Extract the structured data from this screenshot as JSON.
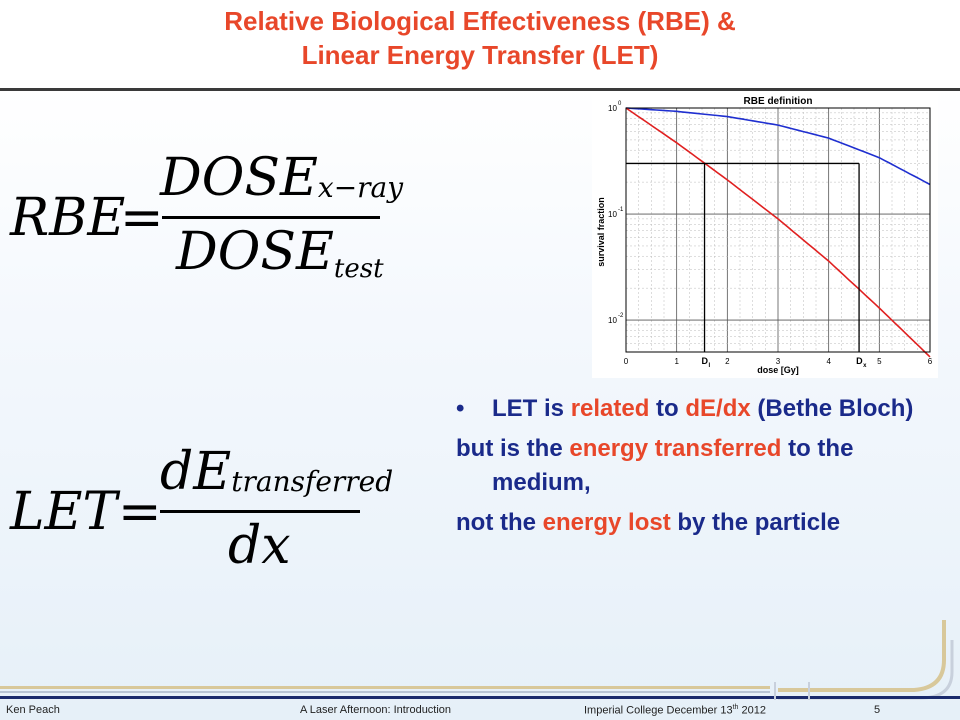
{
  "title": {
    "line1": "Relative Biological Effectiveness (RBE) &",
    "line2": "Linear Energy Transfer (LET)"
  },
  "rbe_equation": {
    "lhs": "RBE",
    "equals": "=",
    "numerator_main": "DOSE",
    "numerator_sub": "x−ray",
    "denominator_main": "DOSE",
    "denominator_sub": "test"
  },
  "let_equation": {
    "lhs": "LET",
    "equals": "=",
    "numerator_main": "dE",
    "numerator_sub": "transferred",
    "denominator": "dx"
  },
  "chart_data": {
    "type": "line",
    "title": "RBE definition",
    "xlabel": "dose [Gy]",
    "ylabel": "survival fraction",
    "xlim": [
      0,
      6
    ],
    "ylim": [
      0.005,
      1
    ],
    "yscale": "log",
    "grid": true,
    "x_ticks": [
      "0",
      "1",
      "2",
      "3",
      "4",
      "5",
      "6"
    ],
    "y_ticks": [
      "10",
      "10",
      "10"
    ],
    "y_tick_exponents": [
      "0",
      "-1",
      "-2"
    ],
    "marker_labels": [
      "D",
      "D"
    ],
    "marker_label_subs": [
      "I",
      "x"
    ],
    "marker_x": [
      1.55,
      4.6
    ],
    "reference_survival": 0.3,
    "series": [
      {
        "color": "#1f2fd0",
        "x": [
          0,
          1,
          2,
          3,
          4,
          5,
          6
        ],
        "y": [
          1.0,
          0.93,
          0.83,
          0.69,
          0.52,
          0.34,
          0.19
        ]
      },
      {
        "color": "#e02020",
        "x": [
          0,
          1,
          2,
          3,
          4,
          5,
          6
        ],
        "y": [
          1.0,
          0.47,
          0.21,
          0.09,
          0.036,
          0.013,
          0.0045
        ]
      }
    ]
  },
  "body_text": {
    "bullet": "•",
    "p1_a": "LET is ",
    "p1_b": "related",
    "p1_c": " to ",
    "p1_d": "dE/dx",
    "p1_e": " (Bethe Bloch)",
    "p2_a": "but is the ",
    "p2_b": "energy transferred",
    "p2_c": " to the medium,",
    "p3_a": "not the ",
    "p3_b": "energy lost",
    "p3_c": " by the particle"
  },
  "footer": {
    "author": "Ken Peach",
    "talk": "A Laser Afternoon: Introduction",
    "venue_a": "Imperial College December 13",
    "venue_sup": "th",
    "venue_b": " 2012",
    "page": "5"
  }
}
